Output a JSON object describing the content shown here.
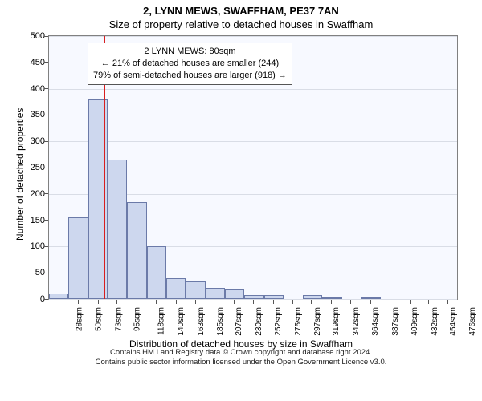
{
  "title_main": "2, LYNN MEWS, SWAFFHAM, PE37 7AN",
  "title_sub": "Size of property relative to detached houses in Swaffham",
  "y_axis_label": "Number of detached properties",
  "x_axis_label": "Distribution of detached houses by size in Swaffham",
  "chart": {
    "type": "histogram",
    "background_color": "#f7f9ff",
    "grid_color": "#d9dde6",
    "border_color": "#808080",
    "bar_fill": "#cdd7ee",
    "bar_stroke": "#6b7aa8",
    "ref_line_color": "#d81e1e",
    "ylim": [
      0,
      500
    ],
    "yticks": [
      0,
      50,
      100,
      150,
      200,
      250,
      300,
      350,
      400,
      450,
      500
    ],
    "x_min": 17,
    "x_max": 487,
    "x_bin_width": 22.5,
    "xtick_labels": [
      "28sqm",
      "50sqm",
      "73sqm",
      "95sqm",
      "118sqm",
      "140sqm",
      "163sqm",
      "185sqm",
      "207sqm",
      "230sqm",
      "252sqm",
      "275sqm",
      "297sqm",
      "319sqm",
      "342sqm",
      "364sqm",
      "387sqm",
      "409sqm",
      "432sqm",
      "454sqm",
      "476sqm"
    ],
    "xtick_values": [
      28,
      50,
      73,
      95,
      118,
      140,
      163,
      185,
      207,
      230,
      252,
      275,
      297,
      319,
      342,
      364,
      387,
      409,
      432,
      454,
      476
    ],
    "bar_values": [
      10,
      155,
      380,
      265,
      185,
      100,
      40,
      35,
      22,
      20,
      8,
      8,
      0,
      8,
      4,
      0,
      4,
      0,
      0,
      0,
      0
    ],
    "ref_line_x": 80
  },
  "annotation": {
    "line1": "2 LYNN MEWS: 80sqm",
    "line2": "← 21% of detached houses are smaller (244)",
    "line3": "79% of semi-detached houses are larger (918) →"
  },
  "footer_line1": "Contains HM Land Registry data © Crown copyright and database right 2024.",
  "footer_line2": "Contains public sector information licensed under the Open Government Licence v3.0."
}
